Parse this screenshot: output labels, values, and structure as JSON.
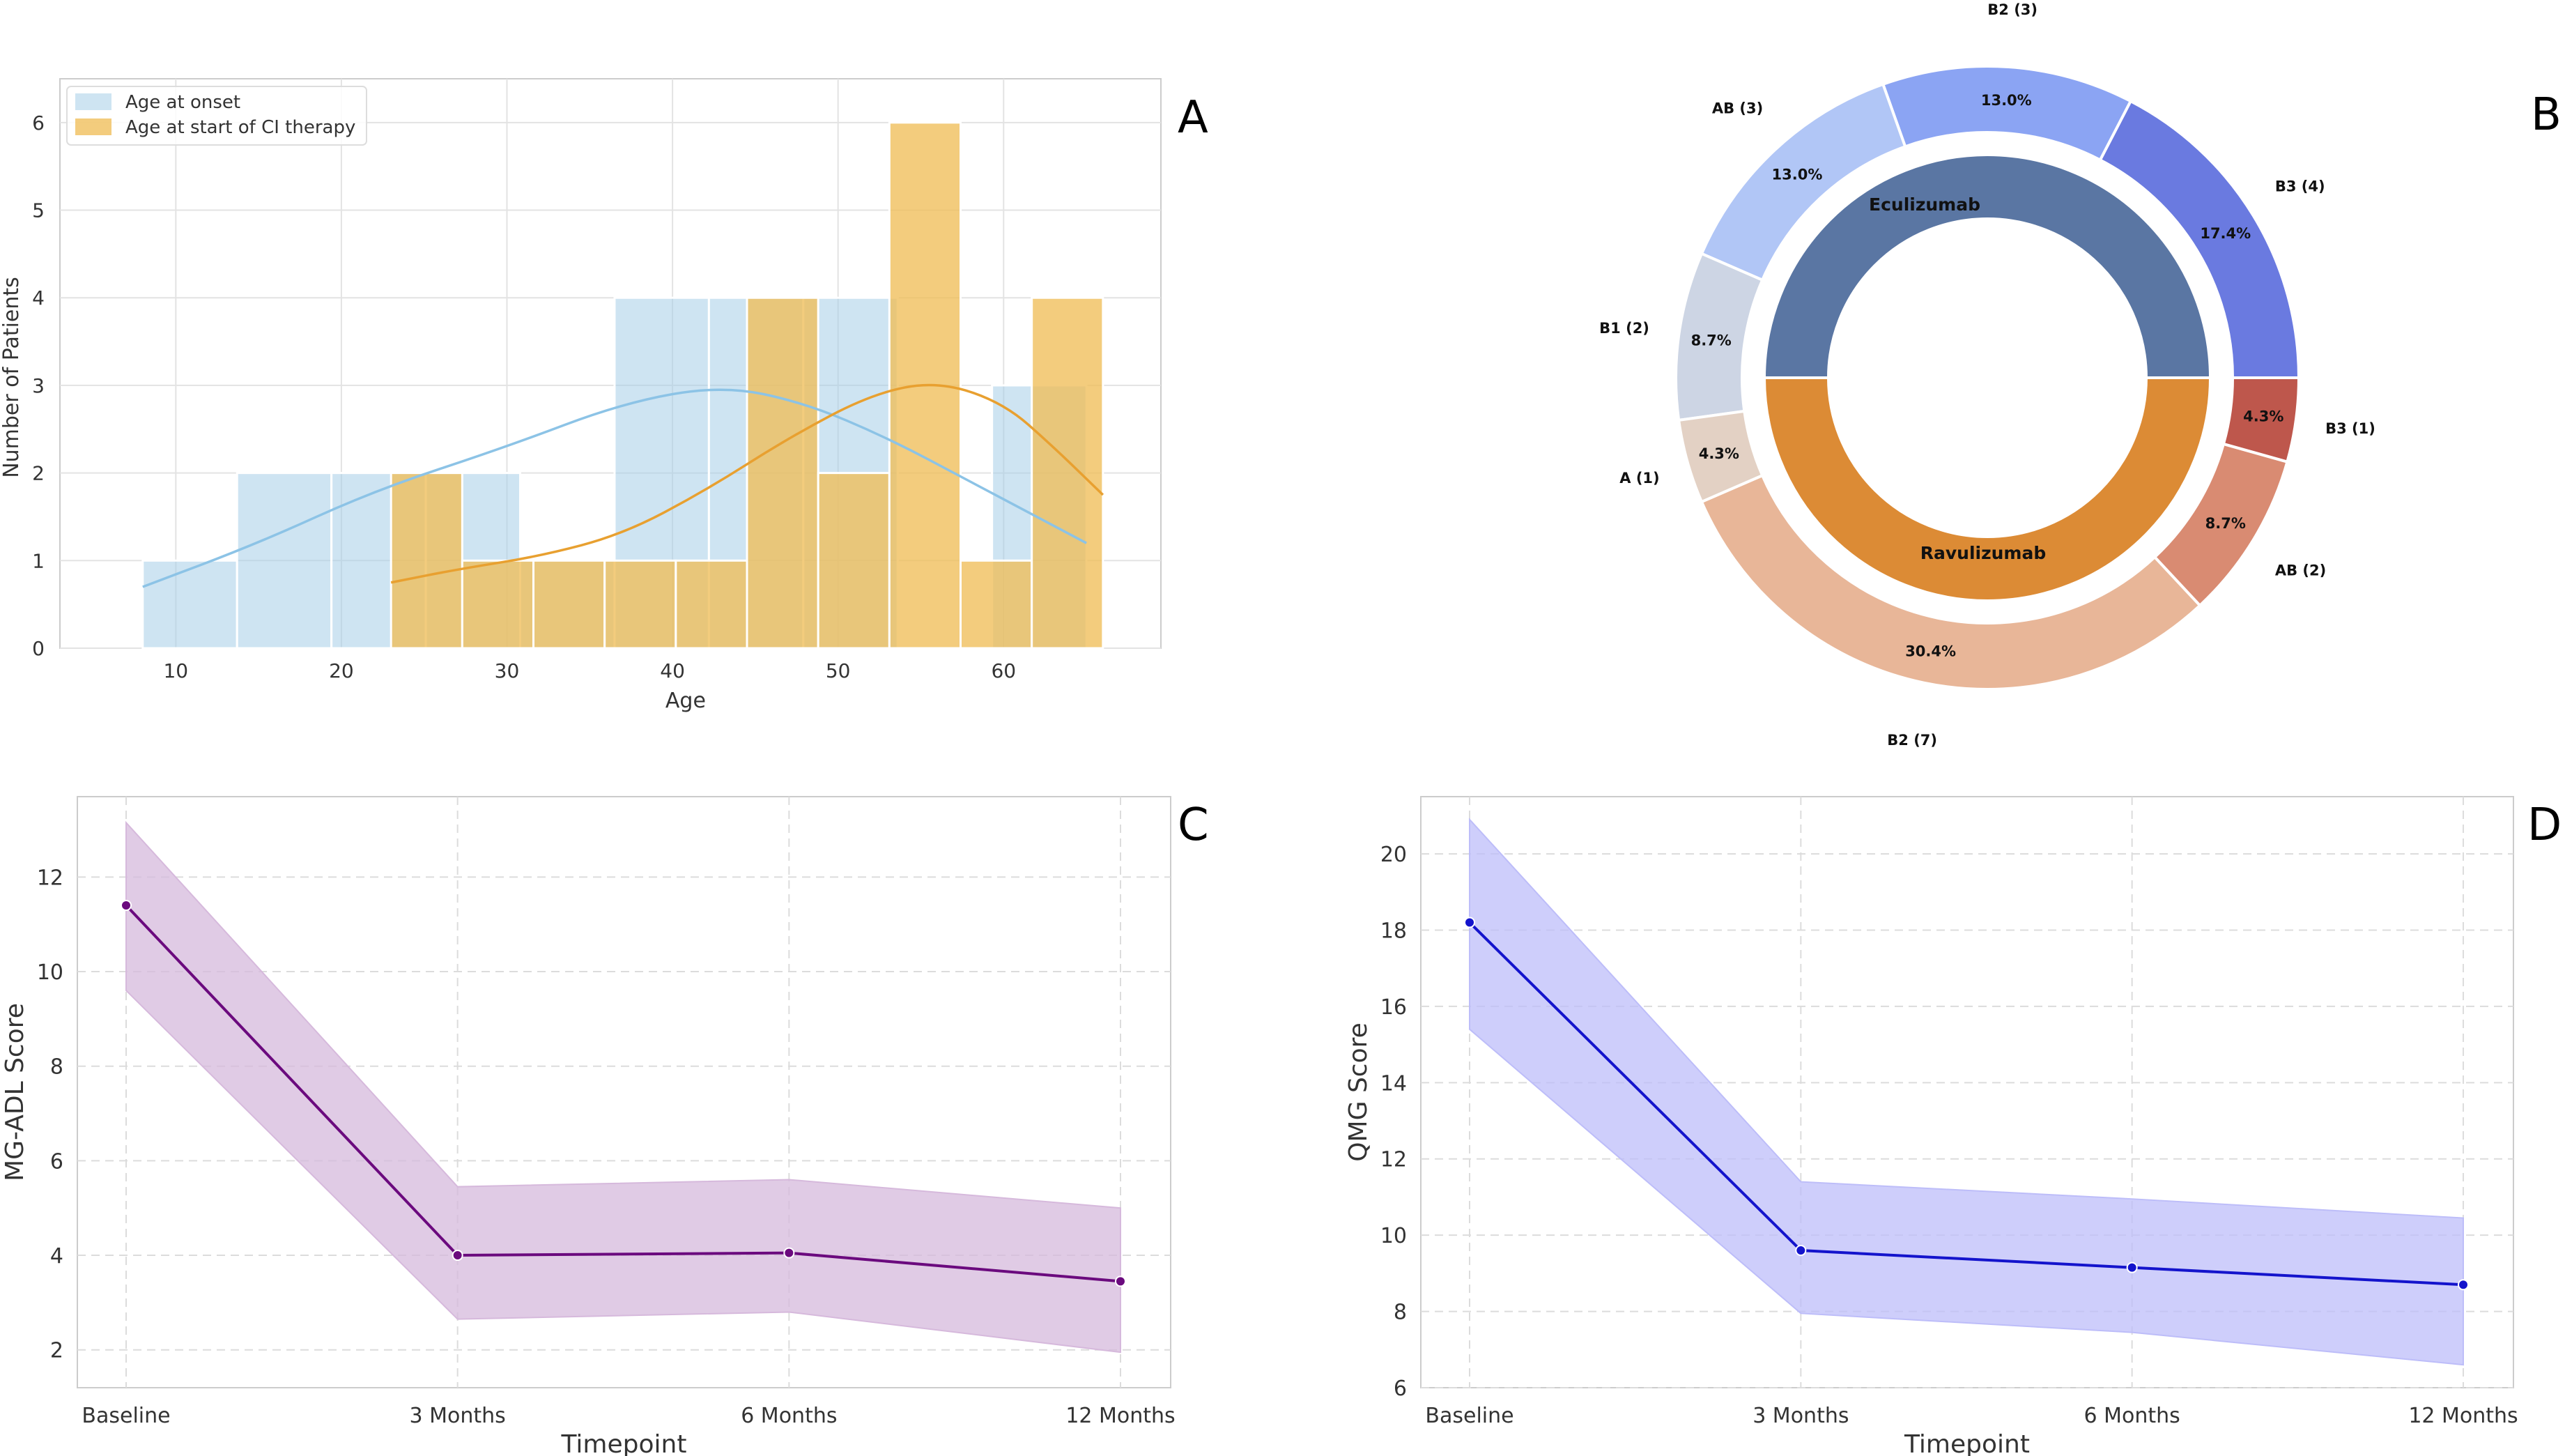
{
  "chart_data": [
    {
      "panel": "A",
      "type": "histogram",
      "title": "",
      "xlabel": "Age",
      "ylabel": "Number of Patients",
      "xlim": [
        3,
        69.5
      ],
      "ylim": [
        0,
        6.5
      ],
      "xticks": [
        10,
        20,
        30,
        40,
        50,
        60
      ],
      "yticks": [
        0,
        1,
        2,
        3,
        4,
        5,
        6
      ],
      "legend_position": "top-left",
      "series": [
        {
          "name": "Age at onset",
          "color": "#A6CEE8",
          "bins": [
            {
              "x0": 8.0,
              "x1": 13.7,
              "count": 1
            },
            {
              "x0": 13.7,
              "x1": 19.4,
              "count": 2
            },
            {
              "x0": 19.4,
              "x1": 25.1,
              "count": 2
            },
            {
              "x0": 25.1,
              "x1": 30.8,
              "count": 2
            },
            {
              "x0": 30.8,
              "x1": 36.5,
              "count": 1
            },
            {
              "x0": 36.5,
              "x1": 42.2,
              "count": 4
            },
            {
              "x0": 42.2,
              "x1": 47.9,
              "count": 4
            },
            {
              "x0": 47.9,
              "x1": 53.6,
              "count": 4
            },
            {
              "x0": 53.6,
              "x1": 59.3,
              "count": 0
            },
            {
              "x0": 59.3,
              "x1": 65.0,
              "count": 3
            }
          ],
          "kde": [
            [
              8,
              0.7
            ],
            [
              15,
              1.2
            ],
            [
              22,
              1.8
            ],
            [
              30,
              2.3
            ],
            [
              37,
              2.8
            ],
            [
              43,
              3.0
            ],
            [
              48,
              2.8
            ],
            [
              53,
              2.4
            ],
            [
              58,
              1.9
            ],
            [
              62,
              1.5
            ],
            [
              65,
              1.2
            ]
          ]
        },
        {
          "name": "Age at start of CI therapy",
          "color": "#F0BE59",
          "bins": [
            {
              "x0": 23.0,
              "x1": 27.3,
              "count": 2
            },
            {
              "x0": 27.3,
              "x1": 31.6,
              "count": 1
            },
            {
              "x0": 31.6,
              "x1": 35.9,
              "count": 1
            },
            {
              "x0": 35.9,
              "x1": 40.2,
              "count": 1
            },
            {
              "x0": 40.2,
              "x1": 44.5,
              "count": 1
            },
            {
              "x0": 44.5,
              "x1": 48.8,
              "count": 4
            },
            {
              "x0": 48.8,
              "x1": 53.1,
              "count": 2
            },
            {
              "x0": 53.1,
              "x1": 57.4,
              "count": 6
            },
            {
              "x0": 57.4,
              "x1": 61.7,
              "count": 1
            },
            {
              "x0": 61.7,
              "x1": 66.0,
              "count": 4
            }
          ],
          "kde": [
            [
              23,
              0.75
            ],
            [
              27,
              0.9
            ],
            [
              32,
              1.05
            ],
            [
              37,
              1.3
            ],
            [
              42,
              1.8
            ],
            [
              47,
              2.4
            ],
            [
              52,
              2.9
            ],
            [
              56,
              3.05
            ],
            [
              60,
              2.8
            ],
            [
              63,
              2.3
            ],
            [
              66,
              1.75
            ]
          ]
        }
      ]
    },
    {
      "panel": "B",
      "type": "pie",
      "subtype": "nested-donut",
      "inner": [
        {
          "label": "Eculizumab",
          "value": 50,
          "color": "#5A76A3"
        },
        {
          "label": "Ravulizumab",
          "value": 50,
          "color": "#DC8B35"
        }
      ],
      "outer": [
        {
          "label": "B3 (4)",
          "pct": "17.4%",
          "value": 4,
          "color": "#6A7AE0"
        },
        {
          "label": "B2 (3)",
          "pct": "13.0%",
          "value": 3,
          "color": "#8BA4F3"
        },
        {
          "label": "AB (3)",
          "pct": "13.0%",
          "value": 3,
          "color": "#B1C6F6"
        },
        {
          "label": "B1 (2)",
          "pct": "8.7%",
          "value": 2,
          "color": "#CDD5E4"
        },
        {
          "label": "A (1)",
          "pct": "4.3%",
          "value": 1,
          "color": "#E3D1C4"
        },
        {
          "label": "B2 (7)",
          "pct": "30.4%",
          "value": 7,
          "color": "#E8B698"
        },
        {
          "label": "AB (2)",
          "pct": "8.7%",
          "value": 2,
          "color": "#D98B72"
        },
        {
          "label": "B3 (1)",
          "pct": "4.3%",
          "value": 1,
          "color": "#BE574C"
        }
      ]
    },
    {
      "panel": "C",
      "type": "line",
      "xlabel": "Timepoint",
      "ylabel": "MG-ADL Score",
      "ylim": [
        1.2,
        13.7
      ],
      "yticks": [
        2,
        4,
        6,
        8,
        10,
        12
      ],
      "categories": [
        "Baseline",
        "3 Months",
        "6 Months",
        "12 Months"
      ],
      "series": [
        {
          "name": "MG-ADL Score",
          "color": "#6B0A7E",
          "fill": "#D6B9DC",
          "values": [
            11.4,
            4.0,
            4.05,
            3.45
          ],
          "lower": [
            9.6,
            2.65,
            2.8,
            1.95
          ],
          "upper": [
            13.15,
            5.45,
            5.6,
            5.0
          ]
        }
      ]
    },
    {
      "panel": "D",
      "type": "line",
      "xlabel": "Timepoint",
      "ylabel": "QMG Score",
      "ylim": [
        6,
        21.5
      ],
      "yticks": [
        6,
        8,
        10,
        12,
        14,
        16,
        18,
        20
      ],
      "categories": [
        "Baseline",
        "3 Months",
        "6 Months",
        "12 Months"
      ],
      "series": [
        {
          "name": "QMG Score",
          "color": "#1414CC",
          "fill": "#BDBDF9",
          "values": [
            18.2,
            9.6,
            9.15,
            8.7
          ],
          "lower": [
            15.4,
            7.95,
            7.45,
            6.6
          ],
          "upper": [
            20.9,
            11.4,
            10.95,
            10.45
          ]
        }
      ]
    }
  ],
  "panel_letters": {
    "A": "A",
    "B": "B",
    "C": "C",
    "D": "D"
  }
}
